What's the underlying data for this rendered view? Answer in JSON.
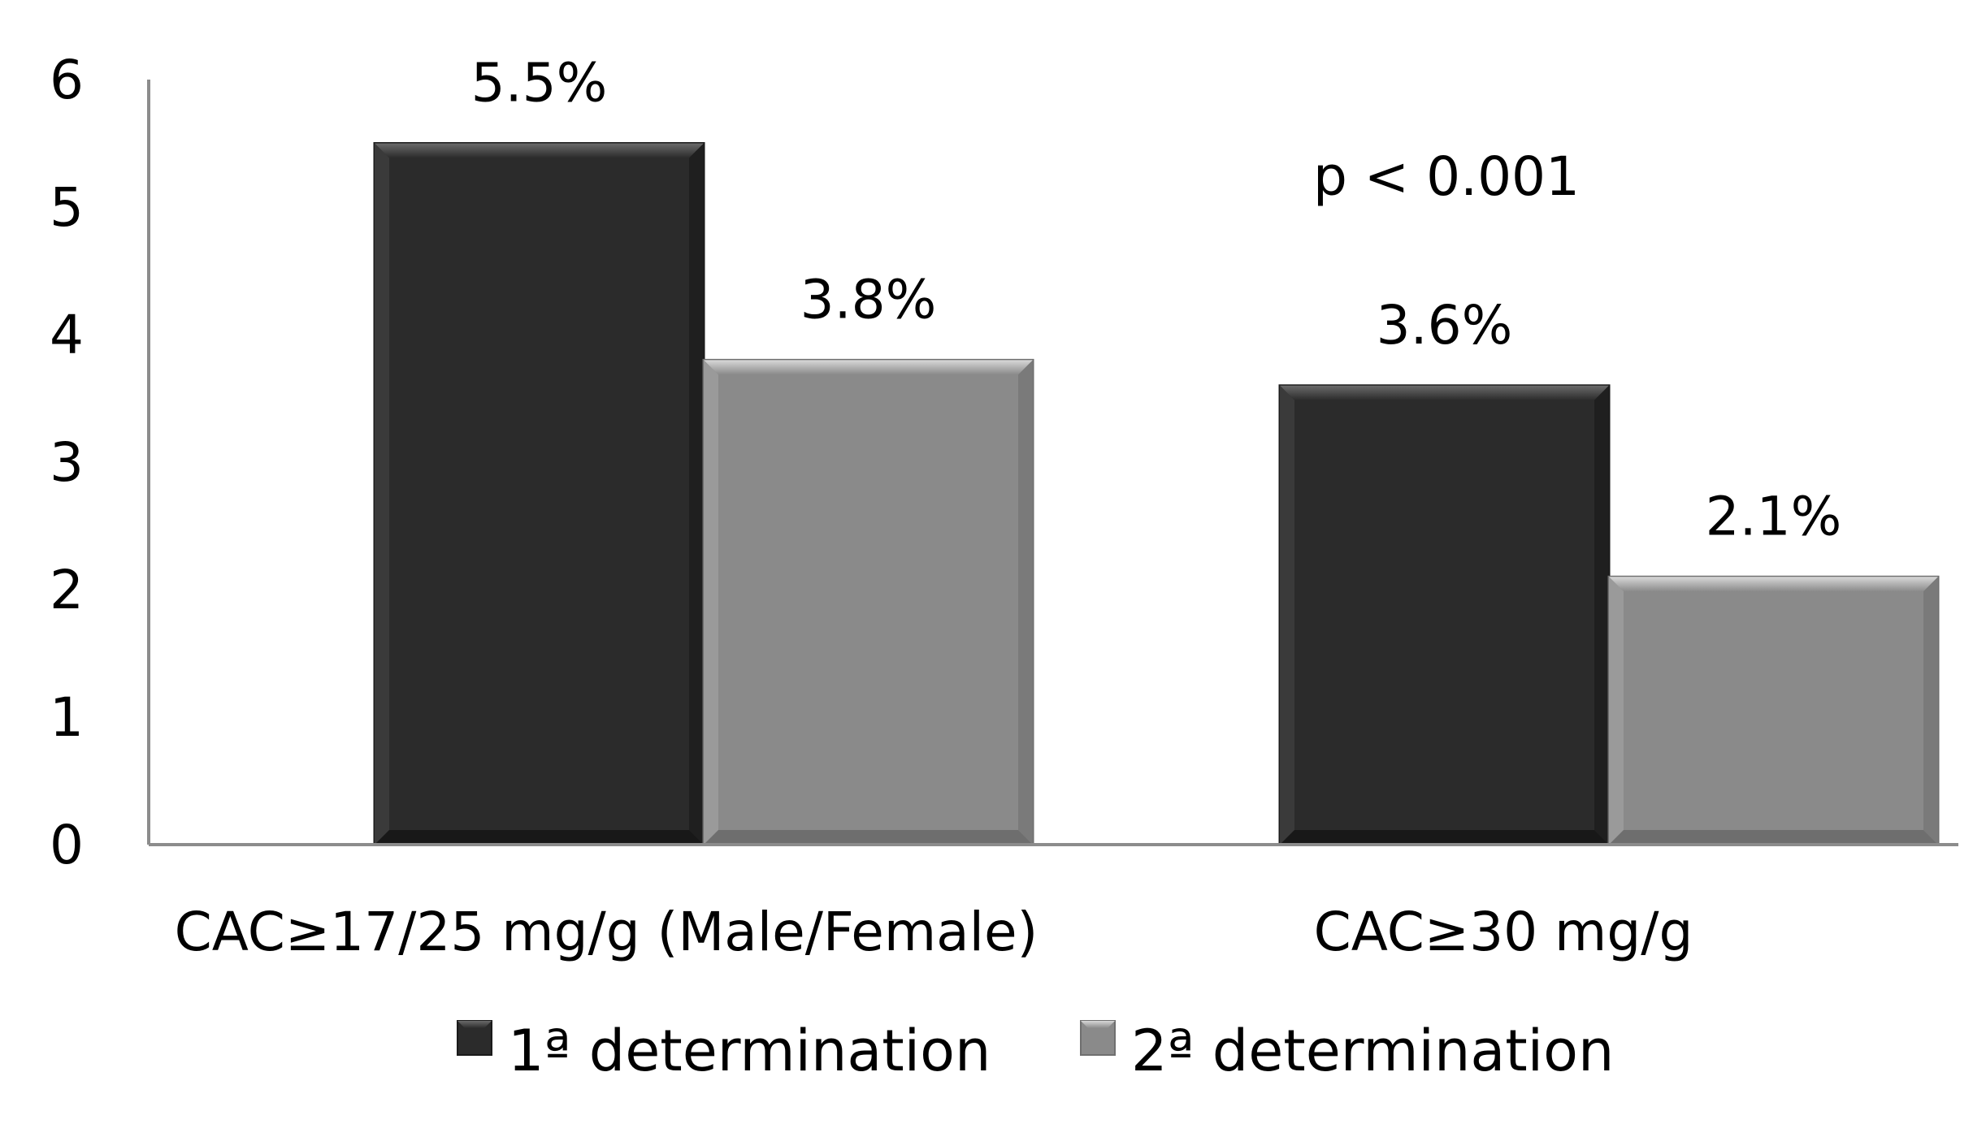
{
  "chart_data": {
    "type": "bar",
    "title": "",
    "xlabel": "",
    "ylabel": "",
    "categories": [
      "CAC≥17/25 mg/g (Male/Female)",
      "CAC≥30 mg/g"
    ],
    "series": [
      {
        "name": "1ª determination",
        "values": [
          5.5,
          3.6
        ],
        "labels": [
          "5.5%",
          "3.6%"
        ],
        "color": "#2b2b2b"
      },
      {
        "name": "2ª determination",
        "values": [
          3.8,
          2.1
        ],
        "labels": [
          "3.8%",
          "2.1%"
        ],
        "color": "#8a8a8a"
      }
    ],
    "ylim": [
      0,
      6
    ],
    "yticks": [
      0,
      1,
      2,
      3,
      4,
      5,
      6
    ],
    "grid": false,
    "legend": "bottom",
    "annotations": [
      {
        "text": "p < 0.001"
      }
    ]
  }
}
